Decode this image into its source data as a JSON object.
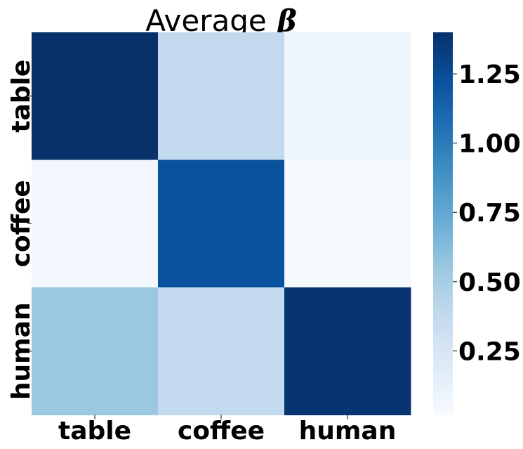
{
  "chart_data": {
    "type": "heatmap",
    "title": "Average",
    "title_symbol": "β",
    "x_categories": [
      "table",
      "coffee",
      "human"
    ],
    "y_categories": [
      "table",
      "coffee",
      "human"
    ],
    "values": [
      [
        1.4,
        0.38,
        0.08
      ],
      [
        0.06,
        1.22,
        0.03
      ],
      [
        0.55,
        0.38,
        1.38
      ]
    ],
    "colormap": "Blues",
    "color_range": [
      0.02,
      1.4
    ],
    "colorbar": {
      "ticks": [
        0.25,
        0.5,
        0.75,
        1.0,
        1.25
      ],
      "tick_labels": [
        "0.25",
        "0.50",
        "0.75",
        "1.00",
        "1.25"
      ]
    },
    "grid": false
  }
}
